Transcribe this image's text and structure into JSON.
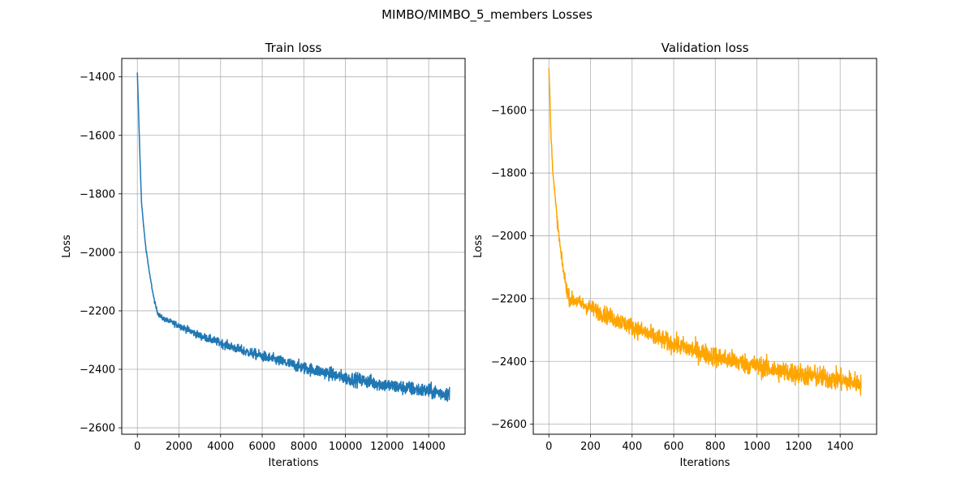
{
  "figure": {
    "suptitle": "MIMBO/MIMBO_5_members Losses"
  },
  "chart_data": [
    {
      "type": "line",
      "title": "Train loss",
      "xlabel": "Iterations",
      "ylabel": "Loss",
      "xlim": [
        -750,
        15750
      ],
      "ylim": [
        -2622,
        -1337
      ],
      "xticks": [
        0,
        2000,
        4000,
        6000,
        8000,
        10000,
        12000,
        14000
      ],
      "xtick_labels": [
        "0",
        "2000",
        "4000",
        "6000",
        "8000",
        "10000",
        "12000",
        "14000"
      ],
      "yticks": [
        -2600,
        -2400,
        -2200,
        -2000,
        -1800,
        -1600,
        -1400
      ],
      "ytick_labels": [
        "−2600",
        "−2400",
        "−2200",
        "−2000",
        "−1800",
        "−1600",
        "−1400"
      ],
      "grid": true,
      "color": "#1f77b4",
      "series": [
        {
          "x": [
            0,
            50,
            100,
            200,
            300,
            400,
            500,
            600,
            700,
            800,
            900,
            1000,
            1200,
            1500,
            2000,
            3000,
            4000,
            5000,
            6000,
            7000,
            8000,
            9000,
            10000,
            11000,
            12000,
            13000,
            14000,
            15000
          ],
          "values": [
            -1385,
            -1500,
            -1620,
            -1830,
            -1910,
            -1980,
            -2030,
            -2080,
            -2120,
            -2160,
            -2190,
            -2210,
            -2225,
            -2235,
            -2250,
            -2285,
            -2310,
            -2335,
            -2355,
            -2375,
            -2395,
            -2410,
            -2430,
            -2440,
            -2455,
            -2465,
            -2475,
            -2485
          ],
          "noise_band": [
            0,
            6,
            8,
            10,
            10,
            12,
            12,
            14,
            15,
            16,
            16,
            18,
            18,
            20,
            24,
            28,
            32,
            36,
            40,
            42,
            45,
            48,
            50,
            52,
            52,
            54,
            55,
            56
          ]
        }
      ]
    },
    {
      "type": "line",
      "title": "Validation loss",
      "xlabel": "Iterations",
      "ylabel": "Loss",
      "xlim": [
        -75,
        1575
      ],
      "ylim": [
        -2632,
        -1435
      ],
      "xticks": [
        0,
        200,
        400,
        600,
        800,
        1000,
        1200,
        1400
      ],
      "xtick_labels": [
        "0",
        "200",
        "400",
        "600",
        "800",
        "1000",
        "1200",
        "1400"
      ],
      "yticks": [
        -2600,
        -2400,
        -2200,
        -2000,
        -1800,
        -1600
      ],
      "ytick_labels": [
        "−2600",
        "−2400",
        "−2200",
        "−2000",
        "−1800",
        "−1600"
      ],
      "grid": true,
      "color": "#ffa500",
      "series": [
        {
          "x": [
            0,
            5,
            10,
            20,
            30,
            40,
            50,
            60,
            70,
            80,
            90,
            100,
            120,
            150,
            200,
            300,
            400,
            500,
            600,
            700,
            800,
            900,
            1000,
            1100,
            1200,
            1300,
            1400,
            1500
          ],
          "values": [
            -1465,
            -1560,
            -1680,
            -1800,
            -1880,
            -1950,
            -2010,
            -2070,
            -2110,
            -2150,
            -2180,
            -2200,
            -2205,
            -2215,
            -2230,
            -2260,
            -2290,
            -2320,
            -2345,
            -2365,
            -2385,
            -2400,
            -2415,
            -2430,
            -2440,
            -2450,
            -2460,
            -2470
          ],
          "noise_band": [
            0,
            15,
            20,
            30,
            35,
            40,
            40,
            40,
            45,
            45,
            50,
            50,
            50,
            50,
            55,
            60,
            60,
            65,
            65,
            70,
            70,
            70,
            70,
            75,
            75,
            75,
            75,
            75
          ]
        }
      ]
    }
  ]
}
